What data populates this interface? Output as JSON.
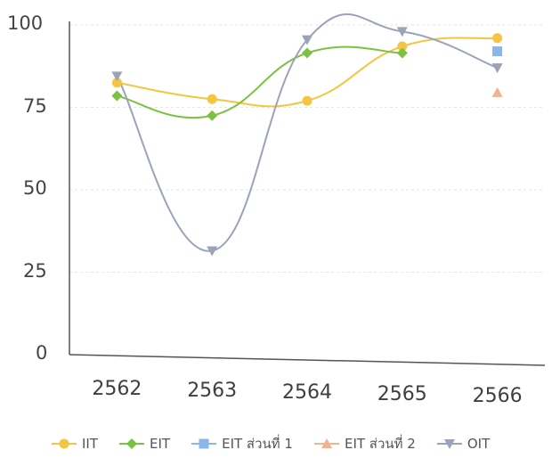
{
  "chart_data": {
    "type": "line",
    "categories": [
      "2562",
      "2563",
      "2564",
      "2565",
      "2566"
    ],
    "yticks": [
      "0",
      "25",
      "50",
      "75",
      "100"
    ],
    "ylim": [
      0,
      100
    ],
    "grid": true,
    "legend_position": "bottom",
    "series": [
      {
        "name": "IIT",
        "values": [
          82.5,
          77.5,
          77,
          93.5,
          96
        ],
        "color": "#f4c542",
        "marker": "circle"
      },
      {
        "name": "EIT",
        "values": [
          78.5,
          72.5,
          91.5,
          91.5,
          null
        ],
        "color": "#7cc142",
        "marker": "diamond"
      },
      {
        "name": "EIT ส่วนที่ 1",
        "values": [
          null,
          null,
          null,
          null,
          92
        ],
        "color": "#8ab6e8",
        "marker": "square"
      },
      {
        "name": "EIT ส่วนที่ 2",
        "values": [
          null,
          null,
          null,
          null,
          79.5
        ],
        "color": "#f0b58e",
        "marker": "triangle-up"
      },
      {
        "name": "OIT",
        "values": [
          84.5,
          31.5,
          95.5,
          98,
          87
        ],
        "color": "#9aa3b8",
        "marker": "triangle-down"
      }
    ]
  }
}
